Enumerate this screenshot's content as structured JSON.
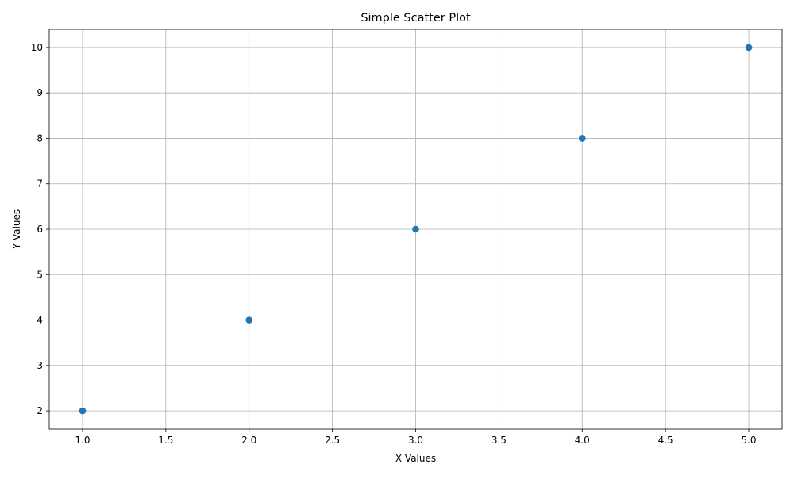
{
  "chart_data": {
    "type": "scatter",
    "title": "Simple Scatter Plot",
    "xlabel": "X Values",
    "ylabel": "Y Values",
    "xlim": [
      0.8,
      5.2
    ],
    "ylim": [
      1.6,
      10.4
    ],
    "xticks": [
      "1.0",
      "1.5",
      "2.0",
      "2.5",
      "3.0",
      "3.5",
      "4.0",
      "4.5",
      "5.0"
    ],
    "yticks": [
      "2",
      "3",
      "4",
      "5",
      "6",
      "7",
      "8",
      "9",
      "10"
    ],
    "grid": true,
    "marker_color": "#1f77b4",
    "series": [
      {
        "x": [
          1,
          2,
          3,
          4,
          5
        ],
        "y": [
          2,
          4,
          6,
          8,
          10
        ]
      }
    ]
  }
}
